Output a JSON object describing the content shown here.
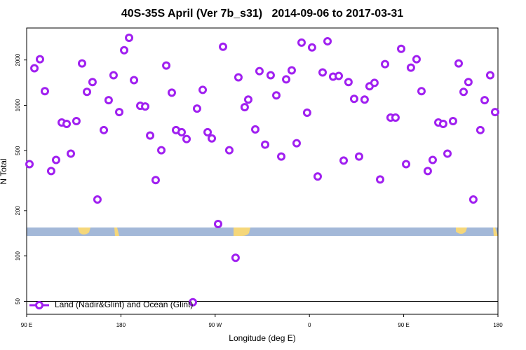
{
  "chart_data": {
    "type": "scatter",
    "title": "40S-35S April (Ver 7b_s31)   2014-09-06 to 2017-03-31",
    "x_label": "Longitude (deg E)",
    "y_label": "N Total",
    "log_y": true,
    "legend_position": "bottom-left",
    "hline": 50,
    "xlim": [
      90,
      540
    ],
    "ylim": [
      41,
      3260
    ],
    "xticks": [
      {
        "value": 90,
        "label": "90 E"
      },
      180,
      {
        "value": 270,
        "label": "90 W"
      },
      {
        "value": 360,
        "label": "0"
      },
      {
        "value": 450,
        "label": "90 E"
      },
      {
        "value": 540,
        "label": "180"
      }
    ],
    "yticks": [
      50,
      100,
      200,
      500,
      1000,
      2000
    ],
    "series": [
      {
        "name": "Land (Nadir&Glint) and Ocean (Glint)",
        "color": "#a020f0",
        "x": [
          92.7,
          97.4,
          102.7,
          107.4,
          113.4,
          118.1,
          123.5,
          128.2,
          132.2,
          137.5,
          142.9,
          147.6,
          152.9,
          157.6,
          163.7,
          168.3,
          173,
          178.4,
          183.1,
          187.8,
          192.5,
          198.5,
          203.2,
          207.9,
          213.2,
          218.6,
          223.3,
          228.6,
          232.6,
          238,
          242.7,
          248.7,
          252.7,
          258.1,
          262.8,
          266.8,
          272.8,
          277.5,
          283.5,
          289.5,
          292.2,
          298.2,
          301.6,
          308.3,
          312.3,
          317.7,
          323,
          328.4,
          333.1,
          337.8,
          343.1,
          347.8,
          352.5,
          357.8,
          362.5,
          367.9,
          372.6,
          377.3,
          382.6,
          388,
          392.7,
          397.3,
          402.7,
          407.4,
          412.7,
          417.4,
          422.1,
          427.5,
          432.2,
          437.5,
          442.2,
          447.6,
          452.3,
          456.9,
          462.3,
          467,
          473,
          477.7,
          483.1,
          487.7,
          491.8,
          497.1,
          502.5,
          507.2,
          511.8,
          516.5,
          523.2,
          527.3,
          532.6,
          537.3
        ],
        "values": [
          407,
          1762,
          2022,
          1241,
          366,
          434,
          769,
          753,
          478,
          786,
          1897,
          1228,
          1426,
          237,
          685,
          1081,
          1584,
          902,
          2322,
          2807,
          1469,
          993,
          982,
          630,
          319,
          503,
          1837,
          1214,
          685,
          663,
          597,
          49.3,
          951,
          1267,
          663,
          603,
          163,
          2447,
          503,
          97.3,
          1534,
          972,
          1092,
          692,
          1687,
          548,
          1584,
          1164,
          457,
          1486,
          1706,
          560,
          2606,
          893,
          2421,
          337,
          1652,
          2662,
          1549,
          1567,
          430,
          1426,
          1104,
          457,
          1092,
          1337,
          1409,
          322,
          1876,
          829,
          829,
          2371,
          407,
          1778,
          2022,
          1241,
          366,
          434,
          769,
          753,
          478,
          786,
          1897,
          1228,
          1426,
          237,
          685,
          1081,
          1584,
          902
        ]
      }
    ]
  }
}
